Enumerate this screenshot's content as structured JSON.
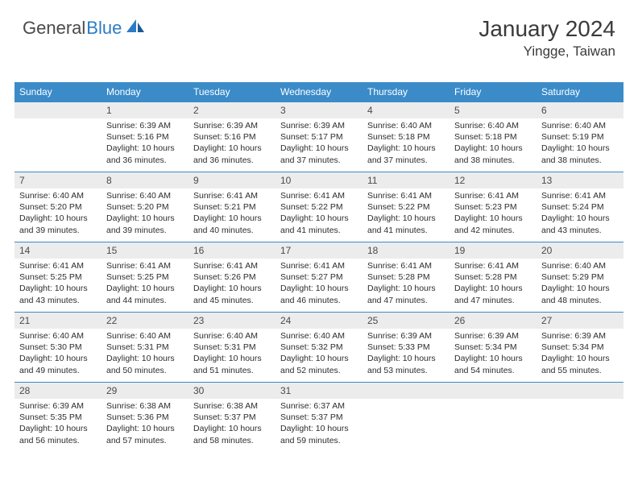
{
  "logo": {
    "text1": "General",
    "text2": "Blue"
  },
  "header": {
    "month": "January 2024",
    "location": "Yingge, Taiwan"
  },
  "colors": {
    "header_bg": "#3b8bc9",
    "header_text": "#ffffff",
    "daynum_bg": "#ececec",
    "daynum_text": "#4a4a4a",
    "body_text": "#2d2d2d",
    "week_border": "#3b8bc9",
    "logo_gray": "#4a4a4a",
    "logo_blue": "#2b7cc4"
  },
  "week_labels": [
    "Sunday",
    "Monday",
    "Tuesday",
    "Wednesday",
    "Thursday",
    "Friday",
    "Saturday"
  ],
  "weeks": [
    [
      {
        "n": "",
        "sunrise": "",
        "sunset": "",
        "daylight": ""
      },
      {
        "n": "1",
        "sunrise": "Sunrise: 6:39 AM",
        "sunset": "Sunset: 5:16 PM",
        "daylight": "Daylight: 10 hours and 36 minutes."
      },
      {
        "n": "2",
        "sunrise": "Sunrise: 6:39 AM",
        "sunset": "Sunset: 5:16 PM",
        "daylight": "Daylight: 10 hours and 36 minutes."
      },
      {
        "n": "3",
        "sunrise": "Sunrise: 6:39 AM",
        "sunset": "Sunset: 5:17 PM",
        "daylight": "Daylight: 10 hours and 37 minutes."
      },
      {
        "n": "4",
        "sunrise": "Sunrise: 6:40 AM",
        "sunset": "Sunset: 5:18 PM",
        "daylight": "Daylight: 10 hours and 37 minutes."
      },
      {
        "n": "5",
        "sunrise": "Sunrise: 6:40 AM",
        "sunset": "Sunset: 5:18 PM",
        "daylight": "Daylight: 10 hours and 38 minutes."
      },
      {
        "n": "6",
        "sunrise": "Sunrise: 6:40 AM",
        "sunset": "Sunset: 5:19 PM",
        "daylight": "Daylight: 10 hours and 38 minutes."
      }
    ],
    [
      {
        "n": "7",
        "sunrise": "Sunrise: 6:40 AM",
        "sunset": "Sunset: 5:20 PM",
        "daylight": "Daylight: 10 hours and 39 minutes."
      },
      {
        "n": "8",
        "sunrise": "Sunrise: 6:40 AM",
        "sunset": "Sunset: 5:20 PM",
        "daylight": "Daylight: 10 hours and 39 minutes."
      },
      {
        "n": "9",
        "sunrise": "Sunrise: 6:41 AM",
        "sunset": "Sunset: 5:21 PM",
        "daylight": "Daylight: 10 hours and 40 minutes."
      },
      {
        "n": "10",
        "sunrise": "Sunrise: 6:41 AM",
        "sunset": "Sunset: 5:22 PM",
        "daylight": "Daylight: 10 hours and 41 minutes."
      },
      {
        "n": "11",
        "sunrise": "Sunrise: 6:41 AM",
        "sunset": "Sunset: 5:22 PM",
        "daylight": "Daylight: 10 hours and 41 minutes."
      },
      {
        "n": "12",
        "sunrise": "Sunrise: 6:41 AM",
        "sunset": "Sunset: 5:23 PM",
        "daylight": "Daylight: 10 hours and 42 minutes."
      },
      {
        "n": "13",
        "sunrise": "Sunrise: 6:41 AM",
        "sunset": "Sunset: 5:24 PM",
        "daylight": "Daylight: 10 hours and 43 minutes."
      }
    ],
    [
      {
        "n": "14",
        "sunrise": "Sunrise: 6:41 AM",
        "sunset": "Sunset: 5:25 PM",
        "daylight": "Daylight: 10 hours and 43 minutes."
      },
      {
        "n": "15",
        "sunrise": "Sunrise: 6:41 AM",
        "sunset": "Sunset: 5:25 PM",
        "daylight": "Daylight: 10 hours and 44 minutes."
      },
      {
        "n": "16",
        "sunrise": "Sunrise: 6:41 AM",
        "sunset": "Sunset: 5:26 PM",
        "daylight": "Daylight: 10 hours and 45 minutes."
      },
      {
        "n": "17",
        "sunrise": "Sunrise: 6:41 AM",
        "sunset": "Sunset: 5:27 PM",
        "daylight": "Daylight: 10 hours and 46 minutes."
      },
      {
        "n": "18",
        "sunrise": "Sunrise: 6:41 AM",
        "sunset": "Sunset: 5:28 PM",
        "daylight": "Daylight: 10 hours and 47 minutes."
      },
      {
        "n": "19",
        "sunrise": "Sunrise: 6:41 AM",
        "sunset": "Sunset: 5:28 PM",
        "daylight": "Daylight: 10 hours and 47 minutes."
      },
      {
        "n": "20",
        "sunrise": "Sunrise: 6:40 AM",
        "sunset": "Sunset: 5:29 PM",
        "daylight": "Daylight: 10 hours and 48 minutes."
      }
    ],
    [
      {
        "n": "21",
        "sunrise": "Sunrise: 6:40 AM",
        "sunset": "Sunset: 5:30 PM",
        "daylight": "Daylight: 10 hours and 49 minutes."
      },
      {
        "n": "22",
        "sunrise": "Sunrise: 6:40 AM",
        "sunset": "Sunset: 5:31 PM",
        "daylight": "Daylight: 10 hours and 50 minutes."
      },
      {
        "n": "23",
        "sunrise": "Sunrise: 6:40 AM",
        "sunset": "Sunset: 5:31 PM",
        "daylight": "Daylight: 10 hours and 51 minutes."
      },
      {
        "n": "24",
        "sunrise": "Sunrise: 6:40 AM",
        "sunset": "Sunset: 5:32 PM",
        "daylight": "Daylight: 10 hours and 52 minutes."
      },
      {
        "n": "25",
        "sunrise": "Sunrise: 6:39 AM",
        "sunset": "Sunset: 5:33 PM",
        "daylight": "Daylight: 10 hours and 53 minutes."
      },
      {
        "n": "26",
        "sunrise": "Sunrise: 6:39 AM",
        "sunset": "Sunset: 5:34 PM",
        "daylight": "Daylight: 10 hours and 54 minutes."
      },
      {
        "n": "27",
        "sunrise": "Sunrise: 6:39 AM",
        "sunset": "Sunset: 5:34 PM",
        "daylight": "Daylight: 10 hours and 55 minutes."
      }
    ],
    [
      {
        "n": "28",
        "sunrise": "Sunrise: 6:39 AM",
        "sunset": "Sunset: 5:35 PM",
        "daylight": "Daylight: 10 hours and 56 minutes."
      },
      {
        "n": "29",
        "sunrise": "Sunrise: 6:38 AM",
        "sunset": "Sunset: 5:36 PM",
        "daylight": "Daylight: 10 hours and 57 minutes."
      },
      {
        "n": "30",
        "sunrise": "Sunrise: 6:38 AM",
        "sunset": "Sunset: 5:37 PM",
        "daylight": "Daylight: 10 hours and 58 minutes."
      },
      {
        "n": "31",
        "sunrise": "Sunrise: 6:37 AM",
        "sunset": "Sunset: 5:37 PM",
        "daylight": "Daylight: 10 hours and 59 minutes."
      },
      {
        "n": "",
        "sunrise": "",
        "sunset": "",
        "daylight": ""
      },
      {
        "n": "",
        "sunrise": "",
        "sunset": "",
        "daylight": ""
      },
      {
        "n": "",
        "sunrise": "",
        "sunset": "",
        "daylight": ""
      }
    ]
  ]
}
